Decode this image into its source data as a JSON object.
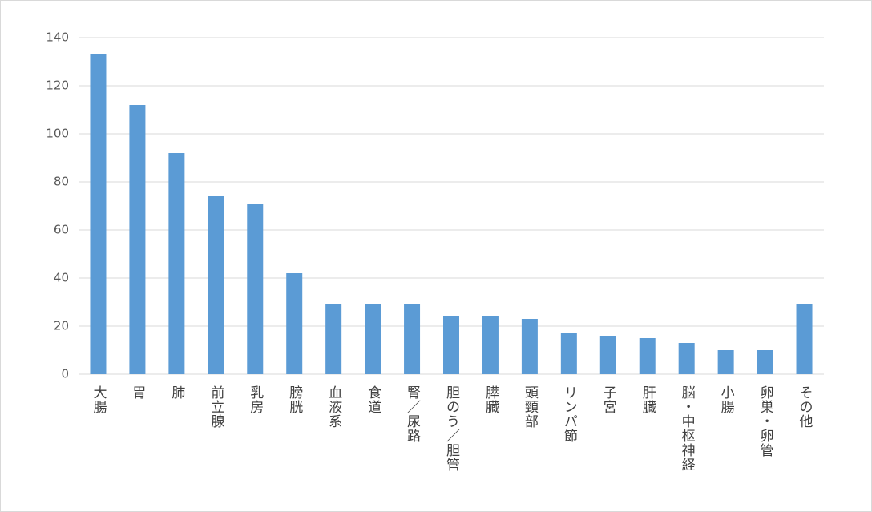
{
  "chart_data": {
    "type": "bar",
    "categories": [
      "大腸",
      "胃",
      "肺",
      "前立腺",
      "乳房",
      "膀胱",
      "血液系",
      "食道",
      "腎／尿路",
      "胆のう／胆管",
      "膵臓",
      "頭頸部",
      "リンパ節",
      "子宮",
      "肝臓",
      "脳・中枢神経",
      "小腸",
      "卵巣・卵管",
      "その他"
    ],
    "values": [
      133,
      112,
      92,
      74,
      71,
      42,
      29,
      29,
      29,
      24,
      24,
      23,
      17,
      16,
      15,
      13,
      10,
      10,
      29
    ],
    "color": "#5b9bd5",
    "ylim": [
      0,
      140
    ],
    "yticks": [
      0,
      20,
      40,
      60,
      80,
      100,
      120,
      140
    ],
    "grid": true
  }
}
